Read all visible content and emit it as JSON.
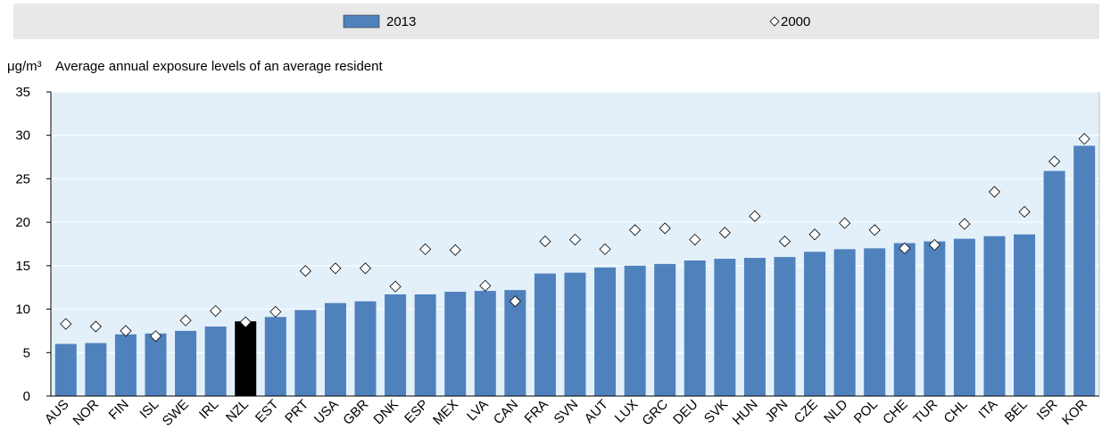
{
  "chart_data": {
    "type": "bar",
    "unit_label": "μg/m³",
    "subtitle": "Average annual exposure levels of an average resident",
    "categories": [
      "AUS",
      "NOR",
      "FIN",
      "ISL",
      "SWE",
      "IRL",
      "NZL",
      "EST",
      "PRT",
      "USA",
      "GBR",
      "DNK",
      "ESP",
      "MEX",
      "LVA",
      "CAN",
      "FRA",
      "SVN",
      "AUT",
      "LUX",
      "GRC",
      "DEU",
      "SVK",
      "HUN",
      "JPN",
      "CZE",
      "NLD",
      "POL",
      "CHE",
      "TUR",
      "CHL",
      "ITA",
      "BEL",
      "ISR",
      "KOR"
    ],
    "series": [
      {
        "name": "2013",
        "type": "bar",
        "color": "#4f81bd",
        "point_colors": [
          "#4f81bd",
          "#4f81bd",
          "#4f81bd",
          "#4f81bd",
          "#4f81bd",
          "#4f81bd",
          "#000000",
          "#4f81bd",
          "#4f81bd",
          "#4f81bd",
          "#4f81bd",
          "#4f81bd",
          "#4f81bd",
          "#4f81bd",
          "#4f81bd",
          "#4f81bd",
          "#4f81bd",
          "#4f81bd",
          "#4f81bd",
          "#4f81bd",
          "#4f81bd",
          "#4f81bd",
          "#4f81bd",
          "#4f81bd",
          "#4f81bd",
          "#4f81bd",
          "#4f81bd",
          "#4f81bd",
          "#4f81bd",
          "#4f81bd",
          "#4f81bd",
          "#4f81bd",
          "#4f81bd",
          "#4f81bd",
          "#4f81bd"
        ],
        "values": [
          6.0,
          6.1,
          7.1,
          7.2,
          7.5,
          8.0,
          8.6,
          9.1,
          9.9,
          10.7,
          10.9,
          11.7,
          11.7,
          12.0,
          12.1,
          12.2,
          14.1,
          14.2,
          14.8,
          15.0,
          15.2,
          15.6,
          15.8,
          15.9,
          16.0,
          16.6,
          16.9,
          17.0,
          17.6,
          17.8,
          18.1,
          18.4,
          18.6,
          25.9,
          28.8
        ]
      },
      {
        "name": "2000",
        "type": "scatter",
        "marker": "diamond",
        "color": "#ffffff",
        "values": [
          8.3,
          8.0,
          7.5,
          6.9,
          8.7,
          9.8,
          8.5,
          9.7,
          14.4,
          14.7,
          14.7,
          12.6,
          16.9,
          16.8,
          12.7,
          10.9,
          17.8,
          18.0,
          16.9,
          19.1,
          19.3,
          18.0,
          18.8,
          20.7,
          17.8,
          18.6,
          19.9,
          19.1,
          17.0,
          17.4,
          19.8,
          23.5,
          21.2,
          27.0,
          29.6
        ]
      }
    ],
    "ylim": [
      0,
      35
    ],
    "yticks": [
      0,
      5,
      10,
      15,
      20,
      25,
      30,
      35
    ],
    "grid": true
  }
}
